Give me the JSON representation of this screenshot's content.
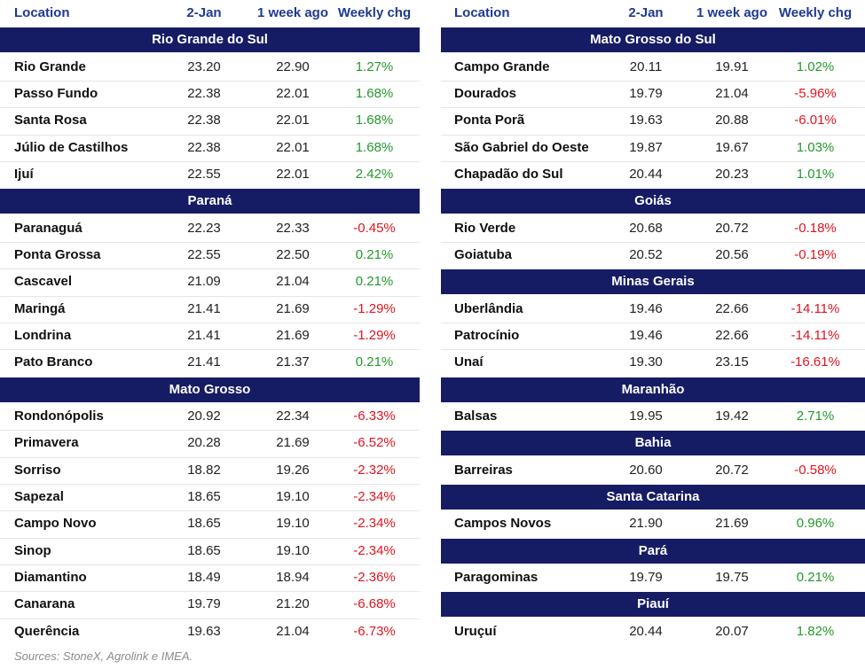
{
  "left": {
    "columns": [
      "Location",
      "2-Jan",
      "1 week ago",
      "Weekly chg"
    ],
    "sections": [
      {
        "title": "Rio Grande do Sul",
        "rows": [
          [
            "Rio Grande",
            "23.20",
            "22.90",
            "1.27%"
          ],
          [
            "Passo Fundo",
            "22.38",
            "22.01",
            "1.68%"
          ],
          [
            "Santa Rosa",
            "22.38",
            "22.01",
            "1.68%"
          ],
          [
            "Júlio de Castilhos",
            "22.38",
            "22.01",
            "1.68%"
          ],
          [
            "Ijuí",
            "22.55",
            "22.01",
            "2.42%"
          ]
        ]
      },
      {
        "title": "Paraná",
        "rows": [
          [
            "Paranaguá",
            "22.23",
            "22.33",
            "-0.45%"
          ],
          [
            "Ponta Grossa",
            "22.55",
            "22.50",
            "0.21%"
          ],
          [
            "Cascavel",
            "21.09",
            "21.04",
            "0.21%"
          ],
          [
            "Maringá",
            "21.41",
            "21.69",
            "-1.29%"
          ],
          [
            "Londrina",
            "21.41",
            "21.69",
            "-1.29%"
          ],
          [
            "Pato Branco",
            "21.41",
            "21.37",
            "0.21%"
          ]
        ]
      },
      {
        "title": "Mato Grosso",
        "rows": [
          [
            "Rondonópolis",
            "20.92",
            "22.34",
            "-6.33%"
          ],
          [
            "Primavera",
            "20.28",
            "21.69",
            "-6.52%"
          ],
          [
            "Sorriso",
            "18.82",
            "19.26",
            "-2.32%"
          ],
          [
            "Sapezal",
            "18.65",
            "19.10",
            "-2.34%"
          ],
          [
            "Campo Novo",
            "18.65",
            "19.10",
            "-2.34%"
          ],
          [
            "Sinop",
            "18.65",
            "19.10",
            "-2.34%"
          ],
          [
            "Diamantino",
            "18.49",
            "18.94",
            "-2.36%"
          ],
          [
            "Canarana",
            "19.79",
            "21.20",
            "-6.68%"
          ],
          [
            "Querência",
            "19.63",
            "21.04",
            "-6.73%"
          ]
        ]
      }
    ]
  },
  "right": {
    "columns": [
      "Location",
      "2-Jan",
      "1 week ago",
      "Weekly chg"
    ],
    "sections": [
      {
        "title": "Mato Grosso do Sul",
        "rows": [
          [
            "Campo Grande",
            "20.11",
            "19.91",
            "1.02%"
          ],
          [
            "Dourados",
            "19.79",
            "21.04",
            "-5.96%"
          ],
          [
            "Ponta Porã",
            "19.63",
            "20.88",
            "-6.01%"
          ],
          [
            "São Gabriel do Oeste",
            "19.87",
            "19.67",
            "1.03%"
          ],
          [
            "Chapadão do Sul",
            "20.44",
            "20.23",
            "1.01%"
          ]
        ]
      },
      {
        "title": "Goiás",
        "rows": [
          [
            "Rio Verde",
            "20.68",
            "20.72",
            "-0.18%"
          ],
          [
            "Goiatuba",
            "20.52",
            "20.56",
            "-0.19%"
          ]
        ]
      },
      {
        "title": "Minas Gerais",
        "rows": [
          [
            "Uberlândia",
            "19.46",
            "22.66",
            "-14.11%"
          ],
          [
            "Patrocínio",
            "19.46",
            "22.66",
            "-14.11%"
          ],
          [
            "Unaí",
            "19.30",
            "23.15",
            "-16.61%"
          ]
        ]
      },
      {
        "title": "Maranhão",
        "rows": [
          [
            "Balsas",
            "19.95",
            "19.42",
            "2.71%"
          ]
        ]
      },
      {
        "title": "Bahia",
        "rows": [
          [
            "Barreiras",
            "20.60",
            "20.72",
            "-0.58%"
          ]
        ]
      },
      {
        "title": "Santa Catarina",
        "rows": [
          [
            "Campos Novos",
            "21.90",
            "21.69",
            "0.96%"
          ]
        ]
      },
      {
        "title": "Pará",
        "rows": [
          [
            "Paragominas",
            "19.79",
            "19.75",
            "0.21%"
          ]
        ]
      },
      {
        "title": "Piauí",
        "rows": [
          [
            "Uruçuí",
            "20.44",
            "20.07",
            "1.82%"
          ]
        ]
      }
    ]
  },
  "footer": "Sources: StoneX, Agrolink e IMEA."
}
